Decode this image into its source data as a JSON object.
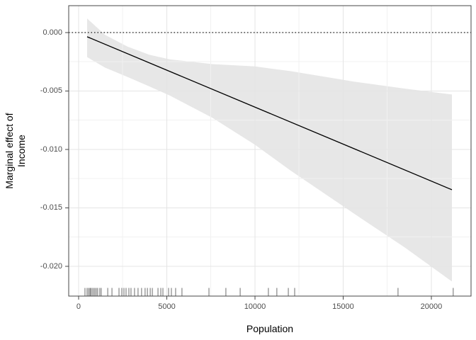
{
  "chart_data": {
    "type": "line",
    "title": "",
    "xlabel": "Population",
    "ylabel": "Marginal effect of\nIncome",
    "x_ticks": [
      0,
      5000,
      10000,
      15000,
      20000
    ],
    "x_tick_labels": [
      "0",
      "5000",
      "10000",
      "15000",
      "20000"
    ],
    "y_ticks": [
      0,
      -0.005,
      -0.01,
      -0.015,
      -0.02
    ],
    "y_tick_labels": [
      "0.000",
      "-0.005",
      "-0.010",
      "-0.015",
      "-0.020"
    ],
    "xlim": [
      -562,
      22250
    ],
    "ylim": [
      -0.02255,
      0.0023
    ],
    "grid": "on",
    "legend": "none",
    "reference_line": {
      "y": 0,
      "style": "dotted",
      "color": "#000000"
    },
    "series": [
      {
        "name": "marginal effect of Income",
        "type": "line",
        "color": "#000000",
        "x": [
          482,
          21165
        ],
        "y": [
          -0.00036,
          -0.01345
        ]
      }
    ],
    "ci_band": {
      "fill": "#e7e7e7",
      "points": [
        {
          "x": 482,
          "upper": 0.0012,
          "lower": -0.0021
        },
        {
          "x": 1500,
          "upper": -0.0002,
          "lower": -0.003
        },
        {
          "x": 2771,
          "upper": -0.0012,
          "lower": -0.0038
        },
        {
          "x": 4000,
          "upper": -0.0019,
          "lower": -0.0046
        },
        {
          "x": 5181,
          "upper": -0.0023,
          "lower": -0.0054
        },
        {
          "x": 7590,
          "upper": -0.0027,
          "lower": -0.0073
        },
        {
          "x": 10000,
          "upper": -0.0029,
          "lower": -0.0096
        },
        {
          "x": 12008,
          "upper": -0.0033,
          "lower": -0.0118
        },
        {
          "x": 15620,
          "upper": -0.0042,
          "lower": -0.0155
        },
        {
          "x": 18500,
          "upper": -0.0048,
          "lower": -0.0184
        },
        {
          "x": 21165,
          "upper": -0.0053,
          "lower": -0.0213
        }
      ]
    },
    "rug_x": [
      360,
      480,
      560,
      640,
      680,
      760,
      840,
      920,
      1000,
      1080,
      1200,
      1280,
      1650,
      1890,
      2290,
      2450,
      2570,
      2690,
      2850,
      2970,
      3170,
      3370,
      3570,
      3770,
      3900,
      4060,
      4180,
      4500,
      4660,
      4780,
      5100,
      5260,
      5500,
      5860,
      7390,
      8350,
      9160,
      10760,
      11240,
      11890,
      12250,
      18110,
      21240
    ]
  },
  "style": {
    "panel_background": "#ffffff",
    "panel_border": "#474747",
    "grid_major": "#e4e4e4",
    "grid_minor": "#f1f1f1",
    "tick_color": "#474747",
    "tick_label_color": "#4d4d4d",
    "title_color": "#000000",
    "band_fill": "#e7e7e7",
    "line_color": "#000000",
    "rug_color": "#545454"
  }
}
